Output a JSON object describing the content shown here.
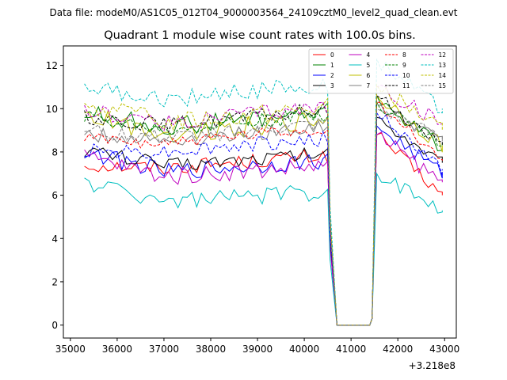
{
  "chart_data": {
    "type": "line",
    "suptitle": "Data file: modeM0/AS1C05_012T04_9000003564_24109cztM0_level2_quad_clean.evt",
    "title": "Quadrant 1 module wise count rates with 100.0s bins.",
    "xlabel": "",
    "ylabel": "",
    "x_offset_label": "+3.218e8",
    "xlim": [
      34850,
      43250
    ],
    "ylim": [
      -0.6,
      12.9
    ],
    "xticks": [
      35000,
      36000,
      37000,
      38000,
      39000,
      40000,
      41000,
      42000,
      43000
    ],
    "xtick_labels": [
      "35000",
      "36000",
      "37000",
      "38000",
      "39000",
      "40000",
      "41000",
      "42000",
      "43000"
    ],
    "yticks": [
      0,
      2,
      4,
      6,
      8,
      10,
      12
    ],
    "ytick_labels": [
      "0",
      "2",
      "4",
      "6",
      "8",
      "10",
      "12"
    ],
    "grid": false,
    "legend_position": "top-right",
    "legend_columns": 4,
    "gap": {
      "drop_start": 40550,
      "zero_start": 40700,
      "zero_end": 41400,
      "rise_end": 41550
    },
    "series": [
      {
        "name": "0",
        "color": "#ff0000",
        "dash": "solid",
        "base": 7.0,
        "start": 7.4,
        "after": 8.8,
        "end": 6.0,
        "amp": 0.35
      },
      {
        "name": "1",
        "color": "#008000",
        "dash": "solid",
        "base": 8.8,
        "start": 9.8,
        "after": 10.6,
        "end": 8.1,
        "amp": 0.45
      },
      {
        "name": "2",
        "color": "#0000ff",
        "dash": "solid",
        "base": 6.8,
        "start": 8.0,
        "after": 9.2,
        "end": 7.0,
        "amp": 0.4
      },
      {
        "name": "3",
        "color": "#000000",
        "dash": "solid",
        "base": 7.1,
        "start": 8.1,
        "after": 9.6,
        "end": 7.5,
        "amp": 0.35
      },
      {
        "name": "4",
        "color": "#bf00bf",
        "dash": "solid",
        "base": 6.6,
        "start": 7.8,
        "after": 8.8,
        "end": 6.6,
        "amp": 0.4
      },
      {
        "name": "5",
        "color": "#00bfbf",
        "dash": "solid",
        "base": 5.5,
        "start": 6.6,
        "after": 7.0,
        "end": 5.3,
        "amp": 0.4
      },
      {
        "name": "6",
        "color": "#bfbf00",
        "dash": "solid",
        "base": 8.5,
        "start": 9.7,
        "after": 10.6,
        "end": 8.3,
        "amp": 0.45
      },
      {
        "name": "7",
        "color": "#808080",
        "dash": "solid",
        "base": 8.2,
        "start": 8.8,
        "after": 10.2,
        "end": 8.5,
        "amp": 0.35
      },
      {
        "name": "8",
        "color": "#ff0000",
        "dash": "dashed",
        "base": 8.1,
        "start": 8.6,
        "after": 10.3,
        "end": 7.6,
        "amp": 0.3
      },
      {
        "name": "9",
        "color": "#008000",
        "dash": "dashed",
        "base": 8.7,
        "start": 9.6,
        "after": 10.3,
        "end": 8.4,
        "amp": 0.35
      },
      {
        "name": "10",
        "color": "#0000ff",
        "dash": "dashed",
        "base": 7.7,
        "start": 8.1,
        "after": 9.8,
        "end": 7.2,
        "amp": 0.35
      },
      {
        "name": "11",
        "color": "#000000",
        "dash": "dashed",
        "base": 8.9,
        "start": 9.6,
        "after": 10.6,
        "end": 8.3,
        "amp": 0.35
      },
      {
        "name": "12",
        "color": "#bf00bf",
        "dash": "dashed",
        "base": 9.0,
        "start": 9.9,
        "after": 11.0,
        "end": 9.3,
        "amp": 0.4
      },
      {
        "name": "13",
        "color": "#00bfbf",
        "dash": "dashed",
        "base": 10.0,
        "start": 11.0,
        "after": 12.3,
        "end": 10.0,
        "amp": 0.4
      },
      {
        "name": "14",
        "color": "#bfbf00",
        "dash": "dashed",
        "base": 9.0,
        "start": 10.2,
        "after": 11.1,
        "end": 9.0,
        "amp": 0.45
      },
      {
        "name": "15",
        "color": "#808080",
        "dash": "dashed",
        "base": 8.3,
        "start": 9.0,
        "after": 10.0,
        "end": 8.6,
        "amp": 0.35
      }
    ]
  }
}
